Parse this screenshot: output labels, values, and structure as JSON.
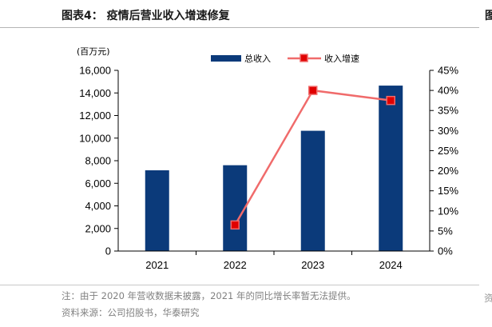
{
  "figure": {
    "title": "图表4：  疫情后营业收入增速修复",
    "note": "注：由于 2020 年营收数据未披露，2021 年的同比增长率暂无法提供。",
    "source": "资料来源：公司招股书，华泰研究",
    "edge_fragment_top": "图",
    "edge_fragment_bottom": "资"
  },
  "chart_data": {
    "type": "bar",
    "categories": [
      "2021",
      "2022",
      "2023",
      "2024"
    ],
    "series": [
      {
        "name": "总收入",
        "type": "bar",
        "axis": "left",
        "values": [
          7150,
          7600,
          10650,
          14650
        ],
        "color": "#0b3a7a"
      },
      {
        "name": "收入增速",
        "type": "line",
        "axis": "right",
        "values": [
          null,
          6.5,
          40.0,
          37.5
        ],
        "color": "#f06b6b",
        "marker_color": "#e00000"
      }
    ],
    "y_left": {
      "unit_label": "(百万元)",
      "ylim": [
        0,
        16000
      ],
      "ticks": [
        "0",
        "2,000",
        "4,000",
        "6,000",
        "8,000",
        "10,000",
        "12,000",
        "14,000",
        "16,000"
      ]
    },
    "y_right": {
      "ylim": [
        0,
        45
      ],
      "ticks": [
        "0%",
        "5%",
        "10%",
        "15%",
        "20%",
        "25%",
        "30%",
        "35%",
        "40%",
        "45%"
      ]
    },
    "legend_position": "top",
    "grid": false
  }
}
